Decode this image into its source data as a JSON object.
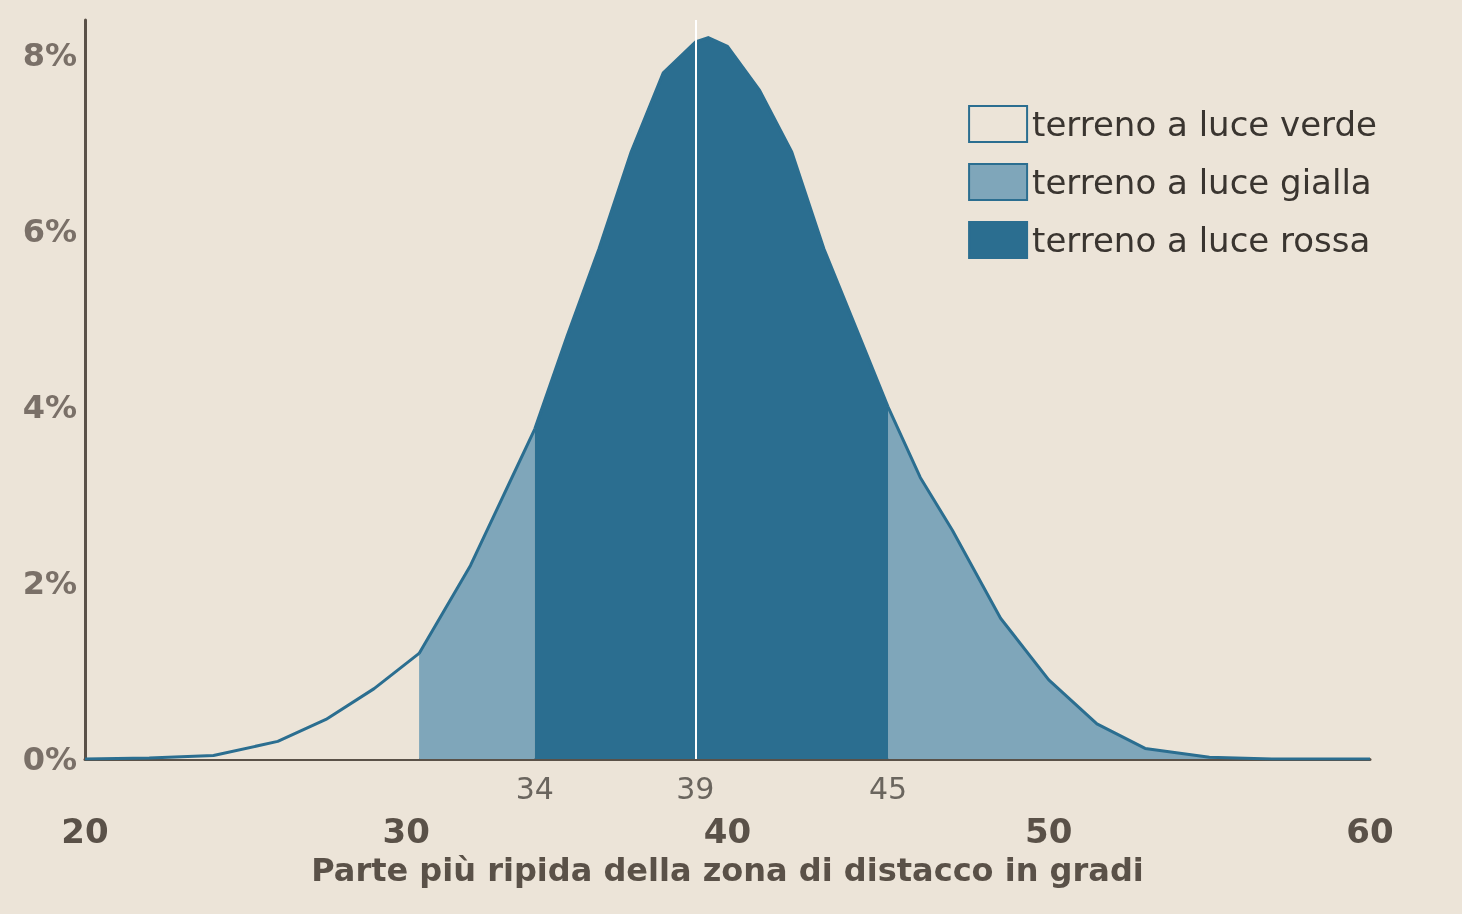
{
  "chart_data": {
    "type": "area",
    "xlabel": "Parte più ripida della zona di distacco in gradi",
    "xlim": [
      20,
      60
    ],
    "xticks": [
      20,
      30,
      40,
      50,
      60
    ],
    "ylim": [
      0,
      8.4
    ],
    "yticks": [
      {
        "value": 0,
        "label": "0%"
      },
      {
        "value": 2,
        "label": "2%"
      },
      {
        "value": 4,
        "label": "4%"
      },
      {
        "value": 6,
        "label": "6%"
      },
      {
        "value": 8,
        "label": "8%"
      }
    ],
    "series": [
      {
        "name": "terreno a luce verde",
        "color": "#ece4d8",
        "x": [
          20,
          22,
          24,
          26,
          27.5,
          29,
          30.4
        ],
        "values": [
          0,
          0.01,
          0.04,
          0.2,
          0.45,
          0.8,
          1.2
        ]
      },
      {
        "name": "terreno a luce gialla",
        "color": "#7fa6ba",
        "x": [
          30.4,
          32,
          34,
          40,
          45,
          46,
          47,
          48.5,
          50,
          51.5,
          53,
          55,
          57,
          60
        ],
        "values": [
          1.2,
          2.2,
          3.75,
          null,
          4.0,
          3.2,
          2.6,
          1.6,
          0.9,
          0.4,
          0.12,
          0.02,
          0,
          0
        ]
      },
      {
        "name": "terreno a luce rossa",
        "color": "#2b6e90",
        "x": [
          34,
          35,
          36,
          37,
          38,
          39,
          39.4,
          40,
          41,
          42,
          43,
          44,
          45
        ],
        "values": [
          3.75,
          4.8,
          5.8,
          6.9,
          7.8,
          8.15,
          8.2,
          8.1,
          7.6,
          6.9,
          5.8,
          4.9,
          4.0
        ]
      }
    ],
    "ref_lines": [
      {
        "axis": "x",
        "value": 39,
        "color": "#ffffff",
        "line_style": "solid"
      }
    ],
    "annotations": [
      {
        "text": "34",
        "x": 34,
        "y": 0
      },
      {
        "text": "39",
        "x": 39,
        "y": 0
      },
      {
        "text": "45",
        "x": 45,
        "y": 0
      }
    ],
    "legend": "top right",
    "grid": false,
    "marker": "none",
    "line_style": "solid"
  }
}
